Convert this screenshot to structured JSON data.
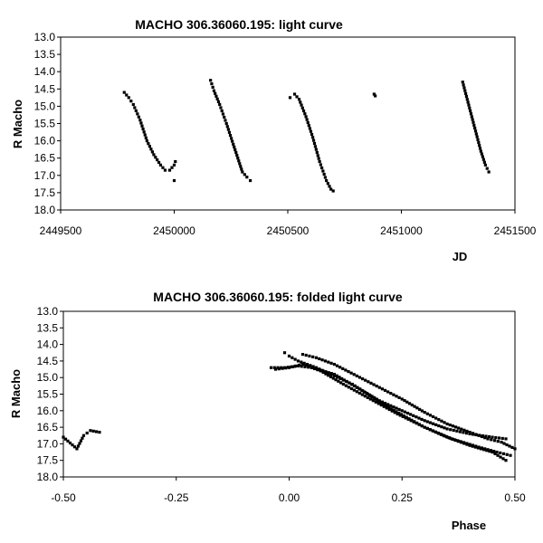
{
  "chart_data": [
    {
      "type": "scatter",
      "title": "MACHO 306.36060.195: light curve",
      "xlabel": "JD",
      "ylabel": "R Macho",
      "xlim": [
        2449500,
        2451500
      ],
      "ylim": [
        13.0,
        18.0
      ],
      "y_inverted": true,
      "grid": false,
      "legend": "none",
      "x_ticks": [
        "2449500",
        "2450000",
        "2450500",
        "2451000",
        "2451500"
      ],
      "y_ticks": [
        "13.0",
        "13.5",
        "14.0",
        "14.5",
        "15.0",
        "15.5",
        "16.0",
        "16.5",
        "17.0",
        "17.5",
        "18.0"
      ],
      "marker_color": "#000000",
      "series": [
        {
          "segments": [
            {
              "x": [
                2449780,
                2449800,
                2449820,
                2449850,
                2449880,
                2449910,
                2449940,
                2449960,
                2449980,
                2450000,
                2450005
              ],
              "y": [
                14.6,
                14.75,
                14.95,
                15.4,
                16.0,
                16.4,
                16.7,
                16.85,
                16.85,
                16.7,
                16.6
              ]
            },
            {
              "x": [
                2450000
              ],
              "y": [
                17.15
              ]
            },
            {
              "x": [
                2450160,
                2450175,
                2450200,
                2450230,
                2450260,
                2450280,
                2450300,
                2450320,
                2450335
              ],
              "y": [
                14.25,
                14.55,
                14.95,
                15.5,
                16.1,
                16.5,
                16.9,
                17.05,
                17.15
              ]
            },
            {
              "x": [
                2450510,
                2450530,
                2450550,
                2450580,
                2450610,
                2450640,
                2450670,
                2450690,
                2450700
              ],
              "y": [
                14.75,
                14.65,
                14.8,
                15.3,
                15.9,
                16.6,
                17.15,
                17.4,
                17.45
              ]
            },
            {
              "x": [
                2450880,
                2450885
              ],
              "y": [
                14.65,
                14.7
              ]
            },
            {
              "x": [
                2451270,
                2451290,
                2451310,
                2451330,
                2451350,
                2451370,
                2451385
              ],
              "y": [
                14.3,
                14.8,
                15.3,
                15.8,
                16.3,
                16.7,
                16.9
              ]
            }
          ]
        }
      ]
    },
    {
      "type": "scatter",
      "title": "MACHO 306.36060.195: folded light curve",
      "xlabel": "Phase",
      "ylabel": "R Macho",
      "xlim": [
        -0.5,
        0.5
      ],
      "ylim": [
        13.0,
        18.0
      ],
      "y_inverted": true,
      "grid": false,
      "legend": "none",
      "x_ticks": [
        "-0.50",
        "-0.25",
        "0.00",
        "0.25",
        "0.50"
      ],
      "y_ticks": [
        "13.0",
        "13.5",
        "14.0",
        "14.5",
        "15.0",
        "15.5",
        "16.0",
        "16.5",
        "17.0",
        "17.5",
        "18.0"
      ],
      "marker_color": "#000000",
      "series": [
        {
          "segments": [
            {
              "x": [
                -0.5,
                -0.47,
                -0.455,
                -0.44,
                -0.42
              ],
              "y": [
                16.8,
                17.15,
                16.75,
                16.6,
                16.65
              ]
            },
            {
              "x": [
                -0.04,
                -0.01,
                0.02,
                0.05,
                0.1,
                0.15,
                0.2,
                0.25,
                0.3,
                0.35,
                0.4,
                0.45,
                0.48
              ],
              "y": [
                14.7,
                14.7,
                14.65,
                14.7,
                14.9,
                15.3,
                15.7,
                16.0,
                16.3,
                16.55,
                16.7,
                16.8,
                16.85
              ]
            },
            {
              "x": [
                -0.03,
                0.0,
                0.03,
                0.07,
                0.12,
                0.18,
                0.24,
                0.3,
                0.36,
                0.42,
                0.46,
                0.49
              ],
              "y": [
                14.75,
                14.7,
                14.6,
                14.8,
                15.2,
                15.65,
                16.1,
                16.5,
                16.85,
                17.1,
                17.25,
                17.35
              ]
            },
            {
              "x": [
                -0.01,
                0.0,
                0.02,
                0.06,
                0.1,
                0.14,
                0.18,
                0.22,
                0.26,
                0.3,
                0.35,
                0.4,
                0.45,
                0.48
              ],
              "y": [
                14.25,
                14.35,
                14.5,
                14.7,
                14.95,
                15.2,
                15.55,
                15.9,
                16.2,
                16.5,
                16.8,
                17.05,
                17.25,
                17.5
              ]
            },
            {
              "x": [
                0.03,
                0.06,
                0.1,
                0.15,
                0.2,
                0.25,
                0.3,
                0.35,
                0.4,
                0.44,
                0.47,
                0.5
              ],
              "y": [
                14.3,
                14.4,
                14.6,
                14.95,
                15.3,
                15.65,
                16.05,
                16.4,
                16.65,
                16.85,
                16.95,
                17.15
              ]
            }
          ]
        }
      ]
    }
  ]
}
